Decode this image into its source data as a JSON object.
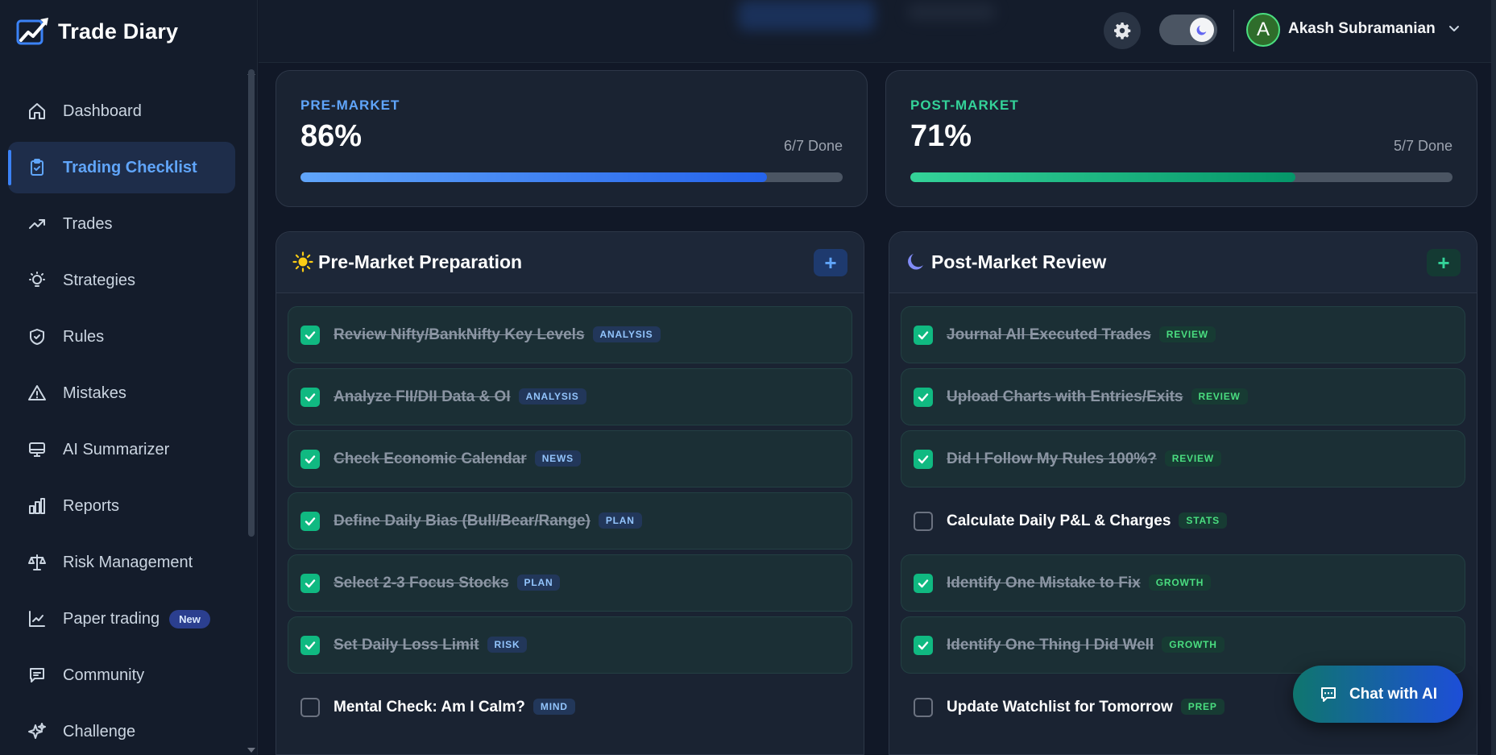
{
  "app": {
    "name": "Trade Diary"
  },
  "sidebar": {
    "items": [
      {
        "label": "Dashboard",
        "icon": "home-icon",
        "active": false
      },
      {
        "label": "Trading Checklist",
        "icon": "clipboard-check-icon",
        "active": true
      },
      {
        "label": "Trades",
        "icon": "trending-up-icon",
        "active": false
      },
      {
        "label": "Strategies",
        "icon": "lightbulb-icon",
        "active": false
      },
      {
        "label": "Rules",
        "icon": "shield-check-icon",
        "active": false
      },
      {
        "label": "Mistakes",
        "icon": "warning-triangle-icon",
        "active": false
      },
      {
        "label": "AI Summarizer",
        "icon": "monitor-icon",
        "active": false
      },
      {
        "label": "Reports",
        "icon": "bar-chart-icon",
        "active": false
      },
      {
        "label": "Risk Management",
        "icon": "scale-icon",
        "active": false
      },
      {
        "label": "Paper trading",
        "icon": "line-chart-icon",
        "active": false,
        "badge": "New"
      },
      {
        "label": "Community",
        "icon": "chat-icon",
        "active": false
      },
      {
        "label": "Challenge",
        "icon": "sparkles-icon",
        "active": false
      }
    ]
  },
  "header": {
    "user": {
      "initial": "A",
      "name": "Akash Subramanian"
    },
    "theme": "dark"
  },
  "progress": {
    "pre": {
      "label": "PRE-MARKET",
      "percent": "86%",
      "done": "6/7 Done",
      "fraction": 0.86,
      "color": "#60a5fa"
    },
    "post": {
      "label": "POST-MARKET",
      "percent": "71%",
      "done": "5/7 Done",
      "fraction": 0.71,
      "color": "#34d399"
    }
  },
  "pre_section": {
    "title": "Pre-Market Preparation",
    "add_label": "+",
    "items": [
      {
        "label": "Review Nifty/BankNifty Key Levels",
        "tag": "ANALYSIS",
        "done": true
      },
      {
        "label": "Analyze FII/DII Data & OI",
        "tag": "ANALYSIS",
        "done": true
      },
      {
        "label": "Check Economic Calendar",
        "tag": "NEWS",
        "done": true
      },
      {
        "label": "Define Daily Bias (Bull/Bear/Range)",
        "tag": "PLAN",
        "done": true
      },
      {
        "label": "Select 2-3 Focus Stocks",
        "tag": "PLAN",
        "done": true
      },
      {
        "label": "Set Daily Loss Limit",
        "tag": "RISK",
        "done": true
      },
      {
        "label": "Mental Check: Am I Calm?",
        "tag": "MIND",
        "done": false
      }
    ]
  },
  "post_section": {
    "title": "Post-Market Review",
    "add_label": "+",
    "items": [
      {
        "label": "Journal All Executed Trades",
        "tag": "REVIEW",
        "done": true
      },
      {
        "label": "Upload Charts with Entries/Exits",
        "tag": "REVIEW",
        "done": true
      },
      {
        "label": "Did I Follow My Rules 100%?",
        "tag": "REVIEW",
        "done": true
      },
      {
        "label": "Calculate Daily P&L & Charges",
        "tag": "STATS",
        "done": false
      },
      {
        "label": "Identify One Mistake to Fix",
        "tag": "GROWTH",
        "done": true
      },
      {
        "label": "Identify One Thing I Did Well",
        "tag": "GROWTH",
        "done": true
      },
      {
        "label": "Update Watchlist for Tomorrow",
        "tag": "PREP",
        "done": false
      }
    ]
  },
  "chat": {
    "label": "Chat with AI"
  }
}
